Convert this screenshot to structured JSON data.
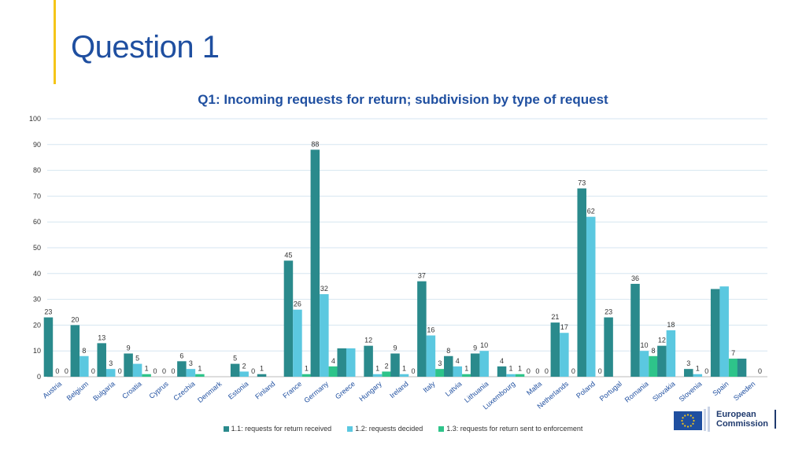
{
  "slide": {
    "title": "Question 1"
  },
  "logo": {
    "line1": "European",
    "line2": "Commission"
  },
  "chart_data": {
    "type": "bar",
    "title": "Q1: Incoming requests for return; subdivision by type of request",
    "xlabel": "",
    "ylabel": "",
    "ylim": [
      0,
      100
    ],
    "yticks": [
      0,
      10,
      20,
      30,
      40,
      50,
      60,
      70,
      80,
      90,
      100
    ],
    "grid": true,
    "legend_position": "bottom",
    "categories": [
      "Austria",
      "Belgium",
      "Bulgaria",
      "Croatia",
      "Cyprus",
      "Czechia",
      "Denmark",
      "Estonia",
      "Finland",
      "France",
      "Germany",
      "Greece",
      "Hungary",
      "Ireland",
      "Italy",
      "Latvia",
      "Lithuania",
      "Luxembourg",
      "Malta",
      "Netherlands",
      "Poland",
      "Portugal",
      "Romania",
      "Slovakia",
      "Slovenia",
      "Spain",
      "Sweden"
    ],
    "series": [
      {
        "name": "1.1: requests for return received",
        "color": "#2a8a8c",
        "values": [
          23,
          20,
          13,
          9,
          0,
          6,
          null,
          5,
          1,
          45,
          88,
          11,
          12,
          9,
          37,
          8,
          9,
          4,
          0,
          21,
          73,
          23,
          36,
          12,
          3,
          34,
          7
        ],
        "labels": [
          "23",
          "20",
          "13",
          "9",
          "0",
          "6",
          "",
          "5",
          "1",
          "45",
          "88",
          "",
          "12",
          "9",
          "37",
          "8",
          "9",
          "4",
          "0",
          "21",
          "73",
          "23",
          "36",
          "12",
          "3",
          "",
          ""
        ]
      },
      {
        "name": "1.2: requests decided",
        "color": "#5bc8e0",
        "values": [
          0,
          8,
          3,
          5,
          0,
          3,
          null,
          2,
          null,
          26,
          32,
          11,
          1,
          1,
          16,
          4,
          10,
          1,
          0,
          17,
          62,
          null,
          10,
          18,
          1,
          35,
          null
        ],
        "labels": [
          "0",
          "8",
          "3",
          "5",
          "0",
          "3",
          "",
          "2",
          "",
          "26",
          "32",
          "",
          "1",
          "1",
          "16",
          "4",
          "10",
          "1",
          "0",
          "17",
          "62",
          "",
          "10",
          "18",
          "1",
          "",
          ""
        ]
      },
      {
        "name": "1.3: requests for return sent to enforcement",
        "color": "#2ec48a",
        "values": [
          0,
          0,
          0,
          1,
          0,
          1,
          null,
          0,
          null,
          1,
          4,
          null,
          2,
          0,
          3,
          1,
          0,
          1,
          0,
          0,
          0,
          null,
          8,
          null,
          0,
          7,
          0
        ],
        "labels": [
          "0",
          "0",
          "0",
          "1",
          "0",
          "1",
          "",
          "0",
          "",
          "1",
          "4",
          "",
          "2",
          "0",
          "3",
          "1",
          "",
          "1",
          "0",
          "0",
          "0",
          "",
          "8",
          "",
          "0",
          "7",
          "0"
        ]
      }
    ]
  }
}
